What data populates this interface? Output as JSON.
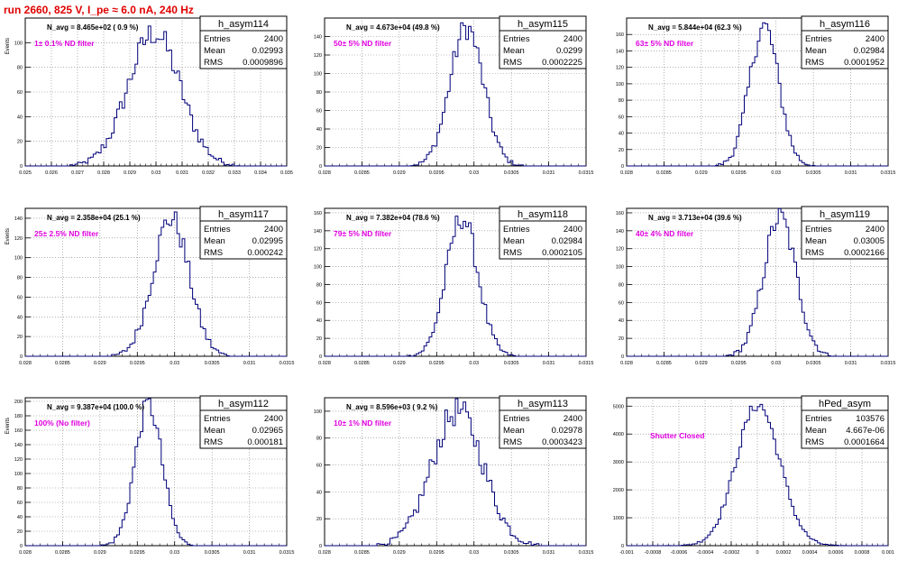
{
  "title": "run 2660,   825 V, I_pe ≈ 6.0 nA, 240 Hz",
  "colors": {
    "title": "#e00000",
    "histogram": "#00007a",
    "annotation": "#e000e0",
    "grid": "#808080"
  },
  "chart_data": [
    {
      "type": "histogram",
      "name": "h_asym114",
      "stats": {
        "entries_label": "Entries",
        "entries": "2400",
        "mean_label": "Mean",
        "mean": "0.02993",
        "rms_label": "RMS",
        "rms": "0.0009896"
      },
      "navg": "N_avg = 8.465e+02 ( 0.9 %)",
      "filter": "1± 0.1% ND filter",
      "ylabel": "Events",
      "xlabel": "",
      "xlim": [
        0.025,
        0.035
      ],
      "ylim": [
        0,
        120
      ],
      "xticks": [
        "0.025",
        "0.026",
        "0.027",
        "0.028",
        "0.029",
        "0.03",
        "0.031",
        "0.032",
        "0.033",
        "0.034",
        "0.035"
      ],
      "yticks": [
        "0",
        "20",
        "40",
        "60",
        "80",
        "100"
      ],
      "mu": 0.02993,
      "sigma": 0.00099,
      "peak": 108
    },
    {
      "type": "histogram",
      "name": "h_asym115",
      "stats": {
        "entries_label": "Entries",
        "entries": "2400",
        "mean_label": "Mean",
        "mean": "0.0299",
        "rms_label": "RMS",
        "rms": "0.0002225"
      },
      "navg": "N_avg = 4.673e+04 (49.8 %)",
      "filter": "50± 5% ND filter",
      "ylabel": "",
      "xlabel": "",
      "xlim": [
        0.028,
        0.0315
      ],
      "ylim": [
        0,
        160
      ],
      "xticks": [
        "0.028",
        "0.0285",
        "0.029",
        "0.0295",
        "0.03",
        "0.0305",
        "0.031",
        "0.0315"
      ],
      "yticks": [
        "0",
        "20",
        "40",
        "60",
        "80",
        "100",
        "120",
        "140"
      ],
      "mu": 0.0299,
      "sigma": 0.0002225,
      "peak": 150
    },
    {
      "type": "histogram",
      "name": "h_asym116",
      "stats": {
        "entries_label": "Entries",
        "entries": "2400",
        "mean_label": "Mean",
        "mean": "0.02984",
        "rms_label": "RMS",
        "rms": "0.0001952"
      },
      "navg": "N_avg = 5.844e+04 (62.3 %)",
      "filter": "63± 5% ND filter",
      "ylabel": "",
      "xlabel": "",
      "xlim": [
        0.028,
        0.0315
      ],
      "ylim": [
        0,
        180
      ],
      "xticks": [
        "0.028",
        "0.0285",
        "0.029",
        "0.0295",
        "0.03",
        "0.0305",
        "0.031",
        "0.0315"
      ],
      "yticks": [
        "0",
        "20",
        "40",
        "60",
        "80",
        "100",
        "120",
        "140",
        "160"
      ],
      "mu": 0.02984,
      "sigma": 0.0001952,
      "peak": 170
    },
    {
      "type": "histogram",
      "name": "h_asym117",
      "stats": {
        "entries_label": "Entries",
        "entries": "2400",
        "mean_label": "Mean",
        "mean": "0.02995",
        "rms_label": "RMS",
        "rms": "0.000242"
      },
      "navg": "N_avg = 2.358e+04 (25.1 %)",
      "filter": "25± 2.5% ND filter",
      "ylabel": "Events",
      "xlabel": "",
      "xlim": [
        0.028,
        0.0315
      ],
      "ylim": [
        0,
        150
      ],
      "xticks": [
        "0.028",
        "0.0285",
        "0.029",
        "0.0295",
        "0.03",
        "0.0305",
        "0.031",
        "0.0315"
      ],
      "yticks": [
        "0",
        "20",
        "40",
        "60",
        "80",
        "100",
        "120",
        "140"
      ],
      "mu": 0.02995,
      "sigma": 0.000242,
      "peak": 140
    },
    {
      "type": "histogram",
      "name": "h_asym118",
      "stats": {
        "entries_label": "Entries",
        "entries": "2400",
        "mean_label": "Mean",
        "mean": "0.02984",
        "rms_label": "RMS",
        "rms": "0.0002105"
      },
      "navg": "N_avg = 7.382e+04 (78.6 %)",
      "filter": "79± 5% ND filter",
      "ylabel": "",
      "xlabel": "",
      "xlim": [
        0.028,
        0.0315
      ],
      "ylim": [
        0,
        165
      ],
      "xticks": [
        "0.028",
        "0.0285",
        "0.029",
        "0.0295",
        "0.03",
        "0.0305",
        "0.031",
        "0.0315"
      ],
      "yticks": [
        "0",
        "20",
        "40",
        "60",
        "80",
        "100",
        "120",
        "140",
        "160"
      ],
      "mu": 0.02984,
      "sigma": 0.0002105,
      "peak": 155
    },
    {
      "type": "histogram",
      "name": "h_asym119",
      "stats": {
        "entries_label": "Entries",
        "entries": "2400",
        "mean_label": "Mean",
        "mean": "0.03005",
        "rms_label": "RMS",
        "rms": "0.0002166"
      },
      "navg": "N_avg = 3.713e+04 (39.6 %)",
      "filter": "40± 4% ND filter",
      "ylabel": "",
      "xlabel": "",
      "xlim": [
        0.028,
        0.0315
      ],
      "ylim": [
        0,
        165
      ],
      "xticks": [
        "0.028",
        "0.0285",
        "0.029",
        "0.0295",
        "0.03",
        "0.0305",
        "0.031",
        "0.0315"
      ],
      "yticks": [
        "0",
        "20",
        "40",
        "60",
        "80",
        "100",
        "120",
        "140",
        "160"
      ],
      "mu": 0.03005,
      "sigma": 0.0002166,
      "peak": 155
    },
    {
      "type": "histogram",
      "name": "h_asym112",
      "stats": {
        "entries_label": "Entries",
        "entries": "2400",
        "mean_label": "Mean",
        "mean": "0.02965",
        "rms_label": "RMS",
        "rms": "0.000181"
      },
      "navg": "N_avg = 9.387e+04 (100.0 %)",
      "filter": "100% (No filter)",
      "ylabel": "Events",
      "xlabel": "",
      "xlim": [
        0.028,
        0.0315
      ],
      "ylim": [
        0,
        205
      ],
      "xticks": [
        "0.028",
        "0.0285",
        "0.029",
        "0.0295",
        "0.03",
        "0.0305",
        "0.031",
        "0.0315"
      ],
      "yticks": [
        "0",
        "20",
        "40",
        "60",
        "80",
        "100",
        "120",
        "140",
        "160",
        "180",
        "200"
      ],
      "mu": 0.02965,
      "sigma": 0.000181,
      "peak": 195
    },
    {
      "type": "histogram",
      "name": "h_asym113",
      "stats": {
        "entries_label": "Entries",
        "entries": "2400",
        "mean_label": "Mean",
        "mean": "0.02978",
        "rms_label": "RMS",
        "rms": "0.0003423"
      },
      "navg": "N_avg = 8.596e+03 ( 9.2 %)",
      "filter": "10± 1% ND filter",
      "ylabel": "",
      "xlabel": "",
      "xlim": [
        0.028,
        0.0315
      ],
      "ylim": [
        0,
        110
      ],
      "xticks": [
        "0.028",
        "0.0285",
        "0.029",
        "0.0295",
        "0.03",
        "0.0305",
        "0.031",
        "0.0315"
      ],
      "yticks": [
        "0",
        "20",
        "40",
        "60",
        "80",
        "100"
      ],
      "mu": 0.02978,
      "sigma": 0.0003423,
      "peak": 100
    },
    {
      "type": "histogram",
      "name": "hPed_asym",
      "stats": {
        "entries_label": "Entries",
        "entries": "103576",
        "mean_label": "Mean",
        "mean": "4.667e-06",
        "rms_label": "RMS",
        "rms": "0.0001664"
      },
      "navg": "",
      "filter": "Shutter Closed",
      "ylabel": "",
      "xlabel": "",
      "xlim": [
        -0.001,
        0.001
      ],
      "ylim": [
        0,
        5300
      ],
      "xticks": [
        "-0.001",
        "-0.0008",
        "-0.0006",
        "-0.0004",
        "-0.0002",
        "0",
        "0.0002",
        "0.0004",
        "0.0006",
        "0.0008",
        "0.001"
      ],
      "yticks": [
        "0",
        "1000",
        "2000",
        "3000",
        "4000",
        "5000"
      ],
      "mu": 4.7e-06,
      "sigma": 0.0001664,
      "peak": 5050
    }
  ]
}
